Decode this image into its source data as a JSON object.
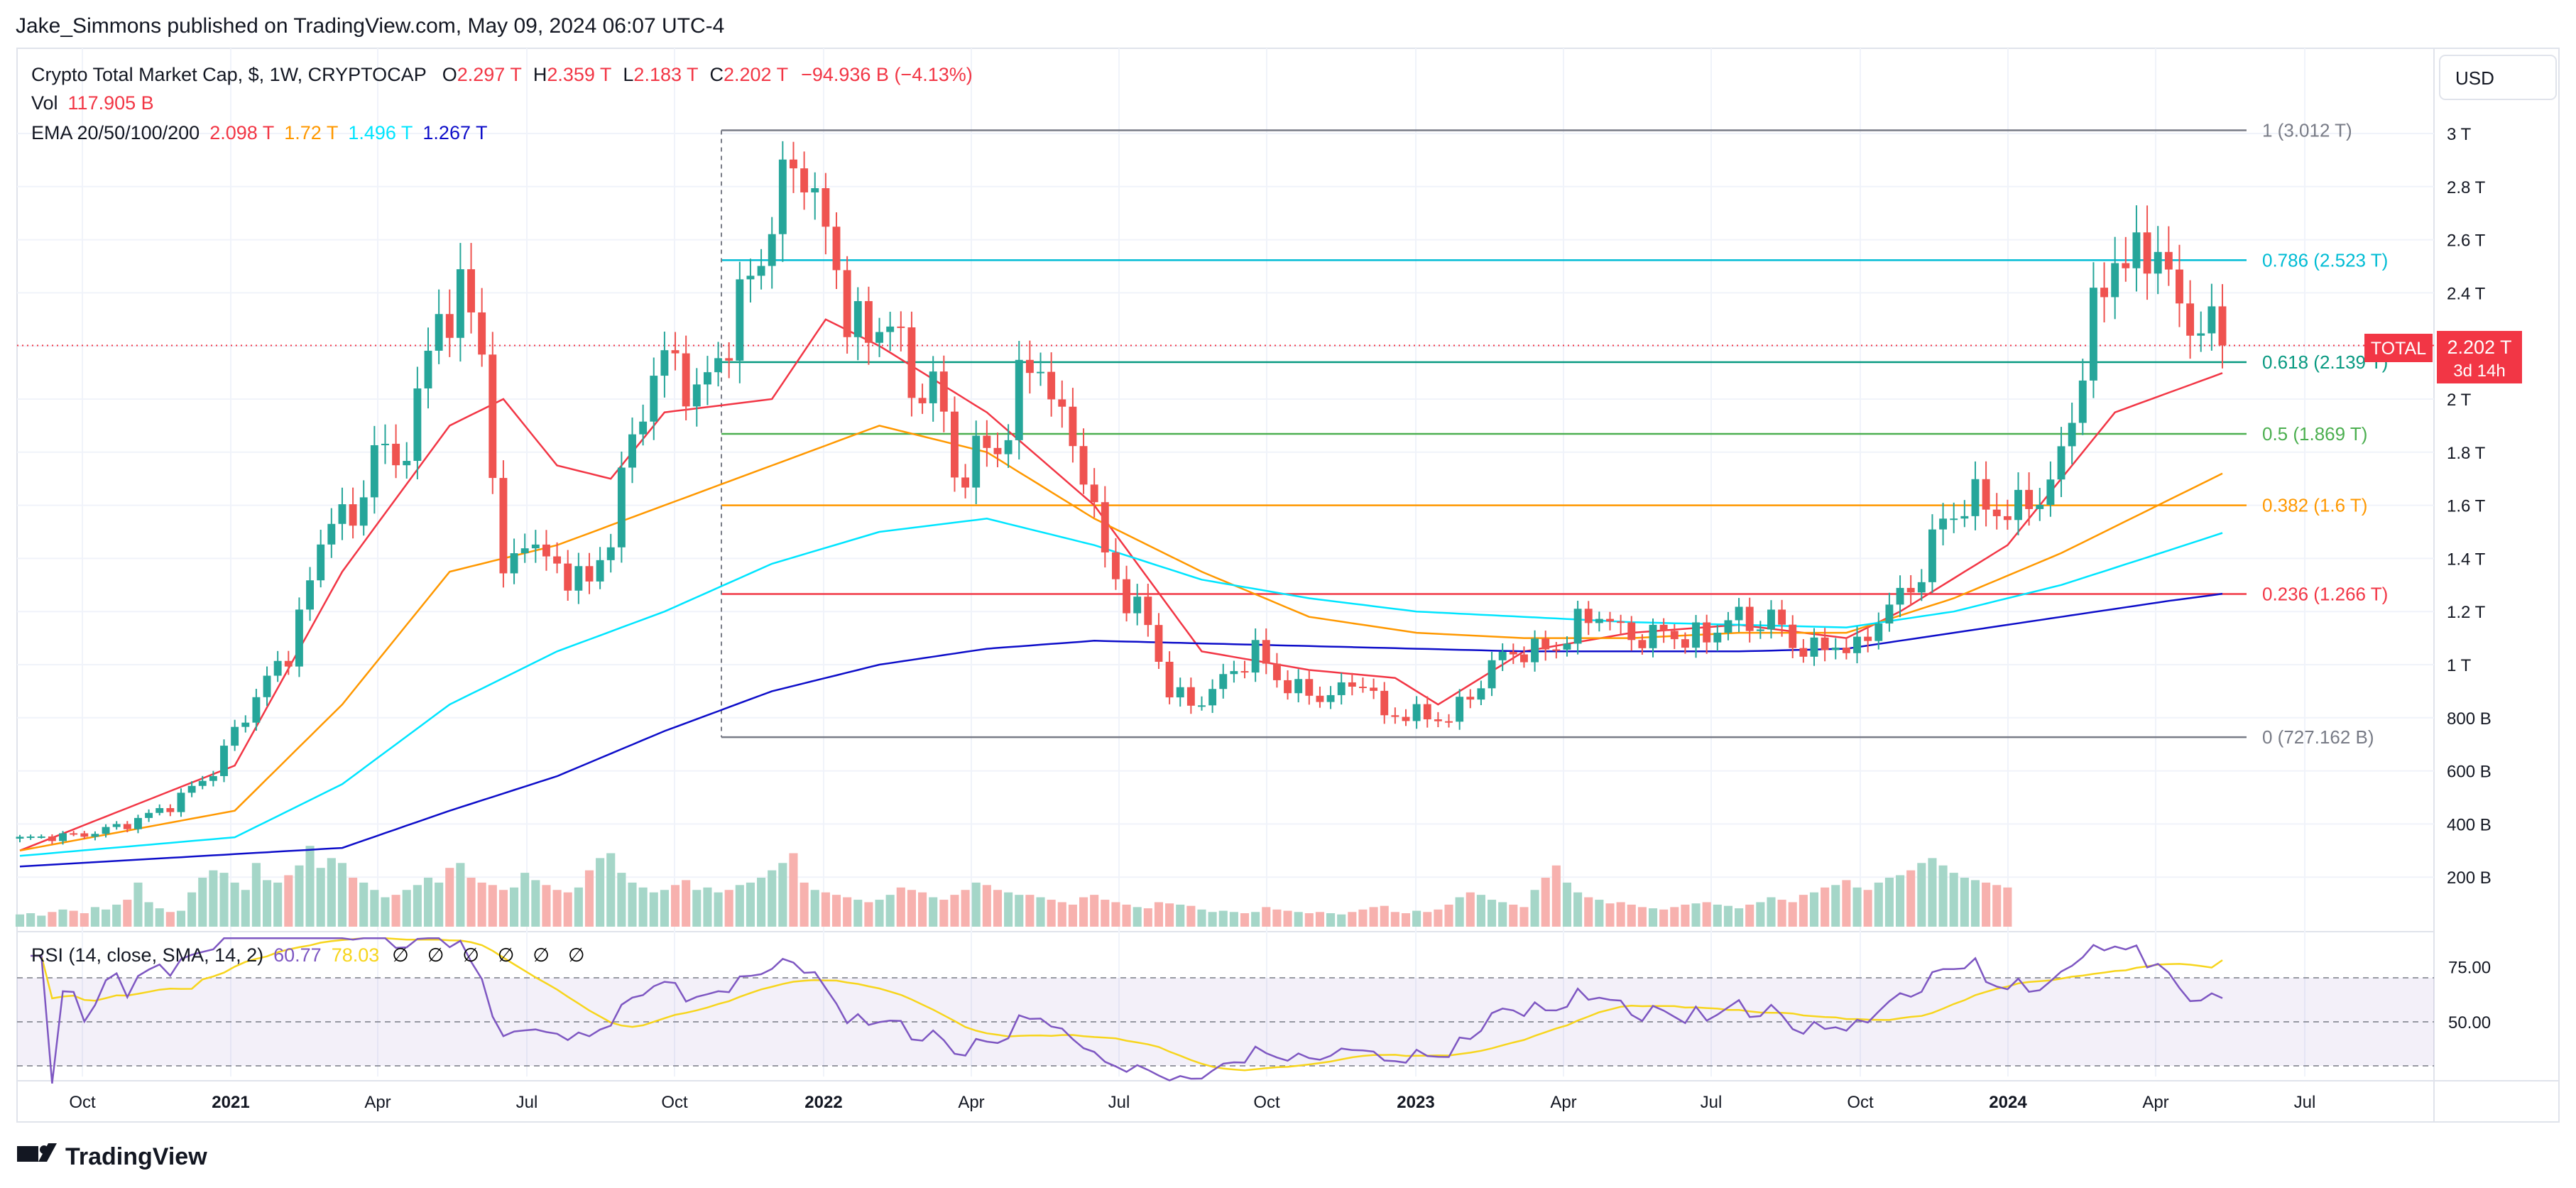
{
  "publisher_line": "Jake_Simmons published on TradingView.com, May 09, 2024 06:07 UTC-4",
  "brand": "TradingView",
  "currency_button": "USD",
  "legend": {
    "title": "Crypto Total Market Cap, $, 1W, CRYPTOCAP",
    "ohlc": [
      {
        "k": "O",
        "v": "2.297 T"
      },
      {
        "k": "H",
        "v": "2.359 T"
      },
      {
        "k": "L",
        "v": "2.183 T"
      },
      {
        "k": "C",
        "v": "2.202 T"
      }
    ],
    "change": "−94.936 B (−4.13%)",
    "vol_label": "Vol",
    "vol_value": "117.905 B",
    "ema_label": "EMA 20/50/100/200",
    "ema_values": [
      {
        "v": "2.098 T",
        "color": "#f23645"
      },
      {
        "v": "1.72 T",
        "color": "#ff9800"
      },
      {
        "v": "1.496 T",
        "color": "#00e5ff"
      },
      {
        "v": "1.267 T",
        "color": "#0d0dc9"
      }
    ],
    "rsi_label": "RSI (14, close, SMA, 14, 2)",
    "rsi_values": [
      {
        "v": "60.77",
        "color": "#7e57c2"
      },
      {
        "v": "78.03",
        "color": "#f7d51d"
      },
      {
        "v": "∅",
        "color": "#131722"
      },
      {
        "v": "∅",
        "color": "#131722"
      },
      {
        "v": "∅",
        "color": "#131722"
      },
      {
        "v": "∅",
        "color": "#131722"
      },
      {
        "v": "∅",
        "color": "#131722"
      },
      {
        "v": "∅",
        "color": "#131722"
      }
    ]
  },
  "price_tag": {
    "symbol": "TOTAL",
    "price": "2.202 T",
    "countdown": "3d 14h"
  },
  "colors": {
    "up": "#26a69a",
    "down": "#ef5350",
    "ema20": "#f23645",
    "ema50": "#ff9800",
    "ema100": "#00e5ff",
    "ema200": "#0d0dc9",
    "rsi": "#7e57c2",
    "rsi_ma": "#f7d51d"
  },
  "chart_data": {
    "type": "candlestick",
    "timeframe": "1W",
    "price_axis": {
      "ticks": [
        "3 T",
        "2.8 T",
        "2.6 T",
        "2.4 T",
        "2.2 T",
        "2 T",
        "1.8 T",
        "1.6 T",
        "1.4 T",
        "1.2 T",
        "1 T",
        "800 B",
        "600 B",
        "400 B",
        "200 B"
      ],
      "ylim_T": [
        0.29,
        3.3
      ]
    },
    "time_axis": {
      "labels": [
        "Oct",
        "2021",
        "Apr",
        "Jul",
        "Oct",
        "2022",
        "Apr",
        "Jul",
        "Oct",
        "2023",
        "Apr",
        "Jul",
        "Oct",
        "2024",
        "Apr",
        "Jul"
      ],
      "bold": [
        false,
        true,
        false,
        false,
        false,
        true,
        false,
        false,
        false,
        true,
        false,
        false,
        false,
        true,
        false,
        false
      ]
    },
    "fib_levels": [
      {
        "ratio": 1,
        "label": "1 (3.012 T)",
        "value_T": 3.012,
        "color": "#787b86"
      },
      {
        "ratio": 0.786,
        "label": "0.786 (2.523 T)",
        "value_T": 2.523,
        "color": "#00bcd4"
      },
      {
        "ratio": 0.618,
        "label": "0.618 (2.139 T)",
        "value_T": 2.139,
        "color": "#089981"
      },
      {
        "ratio": 0.5,
        "label": "0.5 (1.869 T)",
        "value_T": 1.869,
        "color": "#4caf50"
      },
      {
        "ratio": 0.382,
        "label": "0.382 (1.6 T)",
        "value_T": 1.6,
        "color": "#ff9800"
      },
      {
        "ratio": 0.236,
        "label": "0.236 (1.266 T)",
        "value_T": 1.266,
        "color": "#f23645"
      },
      {
        "ratio": 0,
        "label": "0 (727.162 B)",
        "value_T": 0.727,
        "color": "#787b86"
      }
    ],
    "close_path_T": [
      [
        0,
        0.345
      ],
      [
        6,
        0.36
      ],
      [
        10,
        0.4
      ],
      [
        14,
        0.47
      ],
      [
        18,
        0.6
      ],
      [
        20,
        0.75
      ],
      [
        23,
        0.94
      ],
      [
        25,
        1.05
      ],
      [
        27,
        1.3
      ],
      [
        29,
        1.6
      ],
      [
        31,
        1.5
      ],
      [
        33,
        1.85
      ],
      [
        35,
        1.72
      ],
      [
        37,
        2.0
      ],
      [
        39,
        2.3
      ],
      [
        41,
        2.4
      ],
      [
        43,
        2.2
      ],
      [
        45,
        1.3
      ],
      [
        47,
        1.5
      ],
      [
        49,
        1.38
      ],
      [
        51,
        1.35
      ],
      [
        53,
        1.3
      ],
      [
        55,
        1.5
      ],
      [
        57,
        1.85
      ],
      [
        59,
        2.1
      ],
      [
        61,
        2.15
      ],
      [
        63,
        2.0
      ],
      [
        65,
        2.15
      ],
      [
        67,
        2.35
      ],
      [
        69,
        2.55
      ],
      [
        71,
        2.8
      ],
      [
        73,
        2.9
      ],
      [
        75,
        2.6
      ],
      [
        77,
        2.35
      ],
      [
        79,
        2.2
      ],
      [
        81,
        2.35
      ],
      [
        83,
        2.0
      ],
      [
        85,
        2.1
      ],
      [
        87,
        1.7
      ],
      [
        89,
        1.8
      ],
      [
        91,
        1.8
      ],
      [
        93,
        2.05
      ],
      [
        95,
        2.15
      ],
      [
        97,
        1.9
      ],
      [
        99,
        1.75
      ],
      [
        101,
        1.4
      ],
      [
        103,
        1.25
      ],
      [
        105,
        1.15
      ],
      [
        107,
        0.9
      ],
      [
        109,
        0.85
      ],
      [
        111,
        0.9
      ],
      [
        113,
        0.98
      ],
      [
        115,
        1.05
      ],
      [
        117,
        0.95
      ],
      [
        119,
        0.9
      ],
      [
        121,
        0.88
      ],
      [
        123,
        0.9
      ],
      [
        125,
        0.95
      ],
      [
        127,
        0.8
      ],
      [
        129,
        0.82
      ],
      [
        131,
        0.8
      ],
      [
        133,
        0.8
      ],
      [
        135,
        0.88
      ],
      [
        137,
        1.0
      ],
      [
        139,
        1.05
      ],
      [
        141,
        1.05
      ],
      [
        143,
        1.07
      ],
      [
        145,
        1.15
      ],
      [
        147,
        1.2
      ],
      [
        149,
        1.12
      ],
      [
        151,
        1.1
      ],
      [
        153,
        1.12
      ],
      [
        155,
        1.1
      ],
      [
        157,
        1.1
      ],
      [
        159,
        1.18
      ],
      [
        161,
        1.15
      ],
      [
        163,
        1.18
      ],
      [
        165,
        1.08
      ],
      [
        167,
        1.05
      ],
      [
        169,
        1.08
      ],
      [
        171,
        1.05
      ],
      [
        173,
        1.18
      ],
      [
        175,
        1.25
      ],
      [
        177,
        1.35
      ],
      [
        179,
        1.55
      ],
      [
        181,
        1.6
      ],
      [
        183,
        1.62
      ],
      [
        185,
        1.55
      ],
      [
        187,
        1.63
      ],
      [
        189,
        1.65
      ],
      [
        191,
        1.95
      ],
      [
        193,
        2.3
      ],
      [
        195,
        2.55
      ],
      [
        197,
        2.5
      ],
      [
        199,
        2.6
      ],
      [
        201,
        2.3
      ],
      [
        203,
        2.3
      ],
      [
        205,
        2.2
      ]
    ],
    "ema_paths_T": {
      "ema20": [
        [
          0,
          0.3
        ],
        [
          20,
          0.62
        ],
        [
          30,
          1.35
        ],
        [
          40,
          1.9
        ],
        [
          45,
          2.0
        ],
        [
          50,
          1.75
        ],
        [
          55,
          1.7
        ],
        [
          60,
          1.95
        ],
        [
          70,
          2.0
        ],
        [
          75,
          2.3
        ],
        [
          80,
          2.2
        ],
        [
          90,
          1.95
        ],
        [
          100,
          1.6
        ],
        [
          110,
          1.05
        ],
        [
          120,
          0.98
        ],
        [
          128,
          0.95
        ],
        [
          132,
          0.85
        ],
        [
          140,
          1.05
        ],
        [
          150,
          1.12
        ],
        [
          160,
          1.15
        ],
        [
          170,
          1.1
        ],
        [
          175,
          1.2
        ],
        [
          185,
          1.45
        ],
        [
          195,
          1.95
        ],
        [
          205,
          2.098
        ]
      ],
      "ema50": [
        [
          0,
          0.3
        ],
        [
          20,
          0.45
        ],
        [
          30,
          0.85
        ],
        [
          40,
          1.35
        ],
        [
          50,
          1.45
        ],
        [
          60,
          1.6
        ],
        [
          70,
          1.75
        ],
        [
          80,
          1.9
        ],
        [
          90,
          1.8
        ],
        [
          100,
          1.55
        ],
        [
          110,
          1.35
        ],
        [
          120,
          1.18
        ],
        [
          130,
          1.12
        ],
        [
          140,
          1.1
        ],
        [
          150,
          1.1
        ],
        [
          160,
          1.12
        ],
        [
          170,
          1.12
        ],
        [
          180,
          1.25
        ],
        [
          190,
          1.42
        ],
        [
          200,
          1.62
        ],
        [
          205,
          1.72
        ]
      ],
      "ema100": [
        [
          0,
          0.28
        ],
        [
          20,
          0.35
        ],
        [
          30,
          0.55
        ],
        [
          40,
          0.85
        ],
        [
          50,
          1.05
        ],
        [
          60,
          1.2
        ],
        [
          70,
          1.38
        ],
        [
          80,
          1.5
        ],
        [
          90,
          1.55
        ],
        [
          100,
          1.45
        ],
        [
          110,
          1.32
        ],
        [
          120,
          1.25
        ],
        [
          130,
          1.2
        ],
        [
          140,
          1.18
        ],
        [
          150,
          1.16
        ],
        [
          160,
          1.15
        ],
        [
          170,
          1.14
        ],
        [
          180,
          1.2
        ],
        [
          190,
          1.3
        ],
        [
          200,
          1.43
        ],
        [
          205,
          1.496
        ]
      ],
      "ema200": [
        [
          0,
          0.24
        ],
        [
          30,
          0.31
        ],
        [
          40,
          0.45
        ],
        [
          50,
          0.58
        ],
        [
          60,
          0.75
        ],
        [
          70,
          0.9
        ],
        [
          80,
          1.0
        ],
        [
          90,
          1.06
        ],
        [
          100,
          1.09
        ],
        [
          110,
          1.08
        ],
        [
          120,
          1.07
        ],
        [
          130,
          1.06
        ],
        [
          140,
          1.05
        ],
        [
          150,
          1.05
        ],
        [
          160,
          1.05
        ],
        [
          170,
          1.06
        ],
        [
          180,
          1.12
        ],
        [
          190,
          1.18
        ],
        [
          200,
          1.24
        ],
        [
          205,
          1.267
        ]
      ]
    },
    "volume_axis": {
      "ticks": [
        "400 B",
        "200 B"
      ]
    },
    "volume_B": [
      50,
      55,
      45,
      60,
      70,
      65,
      55,
      80,
      70,
      90,
      110,
      180,
      100,
      75,
      60,
      65,
      140,
      200,
      230,
      220,
      180,
      150,
      260,
      190,
      180,
      210,
      250,
      330,
      240,
      280,
      260,
      200,
      180,
      150,
      120,
      130,
      150,
      170,
      200,
      180,
      240,
      260,
      200,
      180,
      170,
      150,
      160,
      220,
      190,
      170,
      150,
      140,
      160,
      230,
      280,
      300,
      220,
      180,
      160,
      140,
      150,
      170,
      190,
      150,
      160,
      140,
      150,
      170,
      180,
      200,
      230,
      260,
      300,
      180,
      150,
      140,
      130,
      120,
      110,
      100,
      110,
      130,
      160,
      150,
      140,
      120,
      110,
      130,
      150,
      180,
      170,
      150,
      140,
      130,
      130,
      120,
      110,
      100,
      90,
      120,
      130,
      110,
      100,
      90,
      80,
      75,
      100,
      95,
      90,
      85,
      70,
      60,
      65,
      60,
      55,
      60,
      80,
      70,
      65,
      60,
      55,
      60,
      55,
      50,
      60,
      70,
      80,
      85,
      60,
      55,
      65,
      60,
      70,
      90,
      120,
      140,
      130,
      110,
      100,
      90,
      80,
      150,
      200,
      250,
      180,
      140,
      120,
      110,
      95,
      100,
      90,
      80,
      75,
      70,
      80,
      90,
      95,
      100,
      90,
      85,
      75,
      90,
      100,
      120,
      110,
      100,
      130,
      140,
      160,
      170,
      190,
      160,
      150,
      180,
      200,
      210,
      230,
      260,
      280,
      250,
      220,
      200,
      190,
      180,
      170,
      160
    ],
    "rsi": {
      "ticks": [
        "75.00",
        "50.00"
      ],
      "levels": [
        70,
        50,
        30
      ],
      "shown_value": 60.77,
      "sma_value": 78.03
    }
  }
}
